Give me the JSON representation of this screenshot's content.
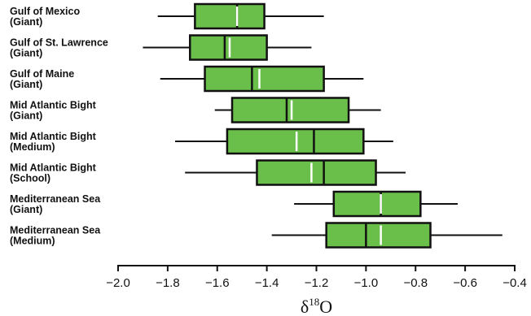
{
  "colors": {
    "box_fill": "#6abf4b",
    "stroke": "#111111",
    "mean_line": "#ffffff"
  },
  "chart_data": {
    "type": "boxplot",
    "orientation": "horizontal",
    "xlabel_base": "δ",
    "xlabel_sup": "18",
    "xlabel_tail": "O",
    "xlim": [
      -2.0,
      -0.4
    ],
    "xticks": [
      -2.0,
      -1.8,
      -1.6,
      -1.4,
      -1.2,
      -1.0,
      -0.8,
      -0.6,
      -0.4
    ],
    "xtick_labels": [
      "−2.0",
      "−1.8",
      "−1.6",
      "−1.4",
      "−1.2",
      "−1.0",
      "−0.8",
      "−0.6",
      "−0.4"
    ],
    "groups": [
      {
        "label_line1": "Gulf of Mexico",
        "label_line2": "(Giant)",
        "whisker_low": -1.84,
        "q1": -1.69,
        "median": -1.52,
        "mean": -1.52,
        "q3": -1.41,
        "whisker_high": -1.17
      },
      {
        "label_line1": "Gulf of St. Lawrence",
        "label_line2": "(Giant)",
        "whisker_low": -1.9,
        "q1": -1.71,
        "median": -1.57,
        "mean": -1.55,
        "q3": -1.4,
        "whisker_high": -1.22
      },
      {
        "label_line1": "Gulf of Maine",
        "label_line2": "(Giant)",
        "whisker_low": -1.83,
        "q1": -1.65,
        "median": -1.46,
        "mean": -1.43,
        "q3": -1.17,
        "whisker_high": -1.01
      },
      {
        "label_line1": "Mid Atlantic Bight",
        "label_line2": "(Giant)",
        "whisker_low": -1.61,
        "q1": -1.54,
        "median": -1.32,
        "mean": -1.3,
        "q3": -1.07,
        "whisker_high": -0.94
      },
      {
        "label_line1": "Mid Atlantic Bight",
        "label_line2": "(Medium)",
        "whisker_low": -1.77,
        "q1": -1.56,
        "median": -1.21,
        "mean": -1.28,
        "q3": -1.01,
        "whisker_high": -0.89
      },
      {
        "label_line1": "Mid Atlantic Bight",
        "label_line2": "(School)",
        "whisker_low": -1.73,
        "q1": -1.44,
        "median": -1.17,
        "mean": -1.22,
        "q3": -0.96,
        "whisker_high": -0.84
      },
      {
        "label_line1": "Mediterranean Sea",
        "label_line2": "(Giant)",
        "whisker_low": -1.29,
        "q1": -1.13,
        "median": -0.94,
        "mean": -0.94,
        "q3": -0.78,
        "whisker_high": -0.63
      },
      {
        "label_line1": "Mediterranean Sea",
        "label_line2": "(Medium)",
        "whisker_low": -1.38,
        "q1": -1.16,
        "median": -1.0,
        "mean": -0.94,
        "q3": -0.74,
        "whisker_high": -0.45
      }
    ]
  }
}
